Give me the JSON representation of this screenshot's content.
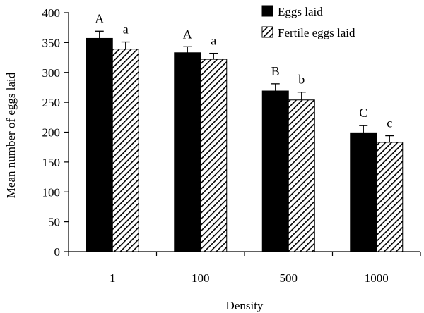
{
  "chart_data": {
    "type": "bar",
    "xlabel": "Density",
    "ylabel": "Mean number of eggs laid",
    "ylim": [
      0,
      400
    ],
    "yticks": [
      "0",
      "50",
      "100",
      "150",
      "200",
      "250",
      "300",
      "350",
      "400"
    ],
    "categories": [
      "1",
      "100",
      "500",
      "1000"
    ],
    "legend_position": "top-right",
    "grid": false,
    "series": [
      {
        "name": "Eggs laid",
        "fill": "#000000",
        "pattern": "solid",
        "values": [
          357,
          333,
          269,
          199
        ],
        "errors": [
          12,
          10,
          12,
          12
        ],
        "letters": [
          "A",
          "A",
          "B",
          "C"
        ]
      },
      {
        "name": "Fertile eggs laid",
        "fill": "#000000",
        "pattern": "diagonal-hatch",
        "values": [
          339,
          322,
          254,
          183
        ],
        "errors": [
          12,
          10,
          13,
          11
        ],
        "letters": [
          "a",
          "a",
          "b",
          "c"
        ]
      }
    ]
  }
}
